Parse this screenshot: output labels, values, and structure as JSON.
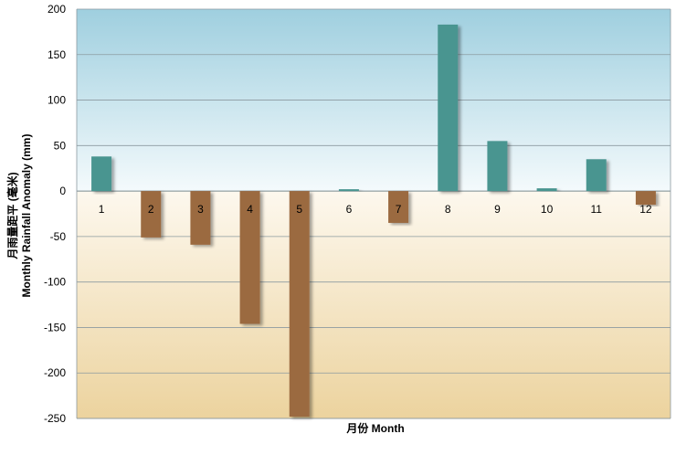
{
  "chart_data": {
    "type": "bar",
    "categories": [
      "1",
      "2",
      "3",
      "4",
      "5",
      "6",
      "7",
      "8",
      "9",
      "10",
      "11",
      "12"
    ],
    "values": [
      38,
      -51,
      -59,
      -146,
      -248,
      2,
      -35,
      183,
      55,
      3,
      35,
      -15
    ],
    "xlabel": "月份  Month",
    "ylabel_line1": "月雨量距平 (毫米)",
    "ylabel_line2": "Monthly Rainfall Anomaly (mm)",
    "ylim": [
      -250,
      200
    ],
    "yticks": [
      200,
      150,
      100,
      50,
      0,
      -50,
      -100,
      -150,
      -200,
      -250
    ],
    "grid": true,
    "colors": {
      "positive": "#4a9590",
      "negative": "#9b6a40",
      "upper_background_top": "#9fcfdf",
      "upper_background_bottom": "#f4fafc",
      "lower_background_top": "#fdf8ee",
      "lower_background_bottom": "#ecd39e"
    }
  }
}
